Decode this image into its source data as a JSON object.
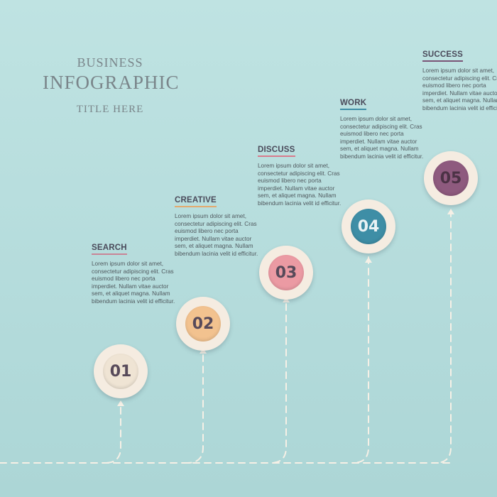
{
  "title": {
    "line1": "BUSINESS",
    "line2": "INFOGRAPHIC",
    "line3": "TITLE HERE"
  },
  "body_text": "Lorem ipsum dolor sit amet, consectetur adipiscing elit. Cras euismod libero nec porta imperdiet. Nullam vitae auctor sem, et aliquet magna. Nullam bibendum lacinia velit id efficitur.",
  "steps": [
    {
      "number": "01",
      "label": "SEARCH",
      "color": "#efe4d4",
      "text_color": "#574a5a",
      "underline": "#c98596"
    },
    {
      "number": "02",
      "label": "CREATIVE",
      "color": "#f2c28f",
      "text_color": "#574a5a",
      "underline": "#e3a96e"
    },
    {
      "number": "03",
      "label": "DISCUSS",
      "color": "#eb9aa3",
      "text_color": "#574a5a",
      "underline": "#d87b8c"
    },
    {
      "number": "04",
      "label": "WORK",
      "color": "#3e8ea6",
      "text_color": "#e9f2f4",
      "underline": "#3e8ea6"
    },
    {
      "number": "05",
      "label": "SUCCESS",
      "color": "#8e5a7e",
      "text_color": "#4b3245",
      "underline": "#7a5476"
    }
  ]
}
